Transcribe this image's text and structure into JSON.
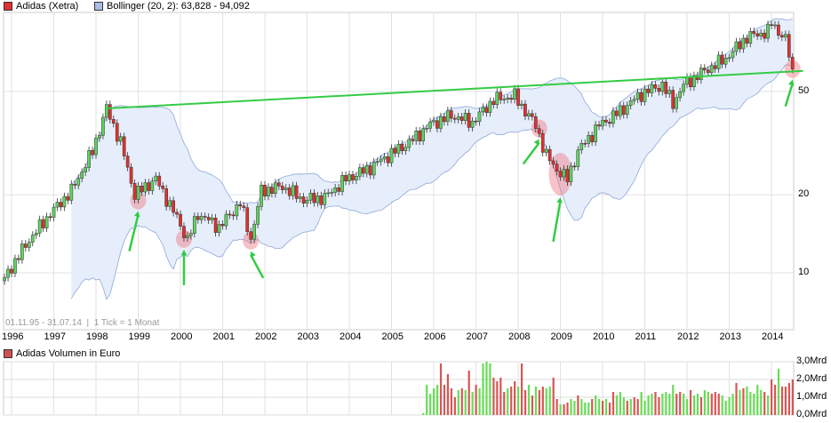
{
  "chart_data": [
    {
      "type": "candlestick",
      "legend": [
        {
          "label": "Adidas (Xetra)",
          "color": "#e03030"
        },
        {
          "label": "Bollinger (20, 2): 63,828 - 94,092",
          "color": "#8fa8d8"
        }
      ],
      "info": "01.11.95 - 31.07.14",
      "tick_info": "1 Tick = 1 Monat",
      "y_scale": "log",
      "y_ticks": [
        {
          "value": 10,
          "label": "10"
        },
        {
          "value": 20,
          "label": "20"
        },
        {
          "value": 50,
          "label": "50"
        }
      ],
      "ylim": [
        8,
        100
      ],
      "x_ticks": [
        "1996",
        "1997",
        "1998",
        "1999",
        "2000",
        "2001",
        "2002",
        "2003",
        "2004",
        "2005",
        "2006",
        "2007",
        "2008",
        "2009",
        "2010",
        "2011",
        "2012",
        "2013",
        "2014"
      ],
      "close_anchors": [
        [
          "1995-11",
          9.6
        ],
        [
          "1996-06",
          13.4
        ],
        [
          "1996-12",
          16.9
        ],
        [
          "1997-06",
          20.7
        ],
        [
          "1997-12",
          29.5
        ],
        [
          "1998-04",
          43
        ],
        [
          "1998-08",
          31.8
        ],
        [
          "1998-12",
          20
        ],
        [
          "1999-06",
          23
        ],
        [
          "1999-12",
          16.3
        ],
        [
          "2000-03",
          13.4
        ],
        [
          "2000-06",
          16.9
        ],
        [
          "2000-12",
          15
        ],
        [
          "2001-06",
          18.6
        ],
        [
          "2001-09",
          13.5
        ],
        [
          "2001-12",
          20.7
        ],
        [
          "2002-06",
          21.5
        ],
        [
          "2002-12",
          19.1
        ],
        [
          "2003-06",
          19.5
        ],
        [
          "2003-12",
          23
        ],
        [
          "2004-06",
          25
        ],
        [
          "2004-12",
          28.3
        ],
        [
          "2005-06",
          31.8
        ],
        [
          "2005-12",
          37.3
        ],
        [
          "2006-06",
          40.4
        ],
        [
          "2006-12",
          38
        ],
        [
          "2007-06",
          46.5
        ],
        [
          "2007-12",
          48
        ],
        [
          "2008-03",
          42
        ],
        [
          "2008-06",
          37
        ],
        [
          "2008-09",
          28.3
        ],
        [
          "2008-12",
          25
        ],
        [
          "2009-03",
          23
        ],
        [
          "2009-06",
          29.5
        ],
        [
          "2009-12",
          37
        ],
        [
          "2010-06",
          42
        ],
        [
          "2010-12",
          49
        ],
        [
          "2011-06",
          53
        ],
        [
          "2011-09",
          45
        ],
        [
          "2011-12",
          53
        ],
        [
          "2012-06",
          60
        ],
        [
          "2012-12",
          67
        ],
        [
          "2013-06",
          81
        ],
        [
          "2013-12",
          85
        ],
        [
          "2014-01",
          92
        ],
        [
          "2014-05",
          79
        ],
        [
          "2014-07",
          61
        ]
      ],
      "trendline": [
        [
          "1998-04",
          43
        ],
        [
          "2014-10",
          60
        ]
      ],
      "annotations": [
        [
          "1999-01",
          19
        ],
        [
          "2000-02",
          13.5
        ],
        [
          "2001-09",
          13.3
        ],
        [
          "2008-07",
          36
        ],
        [
          "2009-01",
          24
        ],
        [
          "2014-07",
          61
        ]
      ]
    },
    {
      "type": "bar",
      "title": "Adidas Volumen in Euro",
      "start": "2005-10",
      "unit": "Mrd",
      "y_ticks": [
        "0,0Mrd",
        "1,0Mrd",
        "2,0Mrd",
        "3,0Mrd"
      ],
      "ylim": [
        0,
        3
      ],
      "values": [
        0.1,
        1.7,
        1.2,
        1.5,
        1.7,
        2.9,
        1.7,
        2.3,
        1.5,
        1.0,
        1.4,
        1.5,
        1.4,
        2.5,
        1.3,
        1.7,
        1.5,
        2.9,
        3.0,
        2.9,
        2.1,
        1.9,
        2.1,
        1.3,
        1.5,
        1.6,
        1.9,
        1.6,
        2.9,
        1.4,
        1.7,
        1.1,
        1.6,
        1.4,
        1.6,
        1.5,
        1.6,
        2.1,
        0.9,
        0.6,
        0.6,
        0.7,
        0.9,
        0.8,
        1.1,
        0.9,
        0.7,
        0.7,
        0.9,
        1.1,
        0.9,
        0.8,
        0.9,
        0.7,
        1.3,
        1.1,
        1.3,
        1.0,
        0.8,
        0.9,
        1.0,
        0.9,
        1.3,
        0.8,
        1.1,
        1.2,
        1.3,
        1.0,
        1.2,
        1.3,
        1.2,
        1.7,
        1.2,
        1.3,
        1.2,
        0.9,
        1.4,
        1.1,
        1.2,
        1.0,
        1.4,
        1.3,
        1.2,
        1.3,
        1.2,
        1.1,
        0.8,
        1.0,
        1.2,
        1.8,
        1.4,
        1.5,
        1.6,
        1.3,
        1.2,
        1.7,
        1.4,
        1.3,
        1.1,
        2.0,
        1.7,
        2.6,
        1.6,
        1.6,
        1.8,
        2.0
      ],
      "up": "gggggrrrrrgrgrgrgggg rrrrgrrgrrgrgrrggrrgrrggrggg rggrgrrgggrgrrggg grrggggrrggrggrggrrrggggrgrgggggrgrrgrr"
    }
  ]
}
